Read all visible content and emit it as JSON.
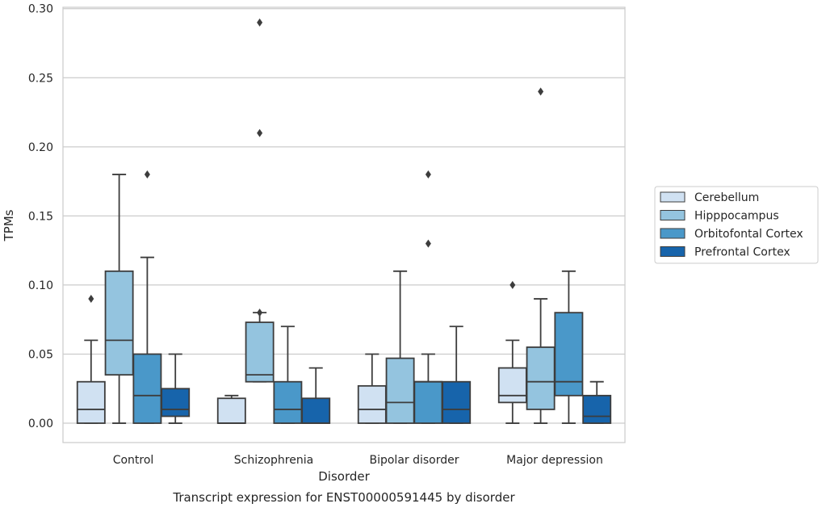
{
  "chart_data": {
    "type": "box",
    "title": "",
    "caption": "Transcript expression for ENST00000591445 by disorder",
    "xlabel": "Disorder",
    "ylabel": "TPMs",
    "ylim": [
      -0.014,
      0.301
    ],
    "yticks": [
      "0.00",
      "0.05",
      "0.10",
      "0.15",
      "0.20",
      "0.25",
      "0.30"
    ],
    "ytick_values": [
      0,
      0.05,
      0.1,
      0.15,
      0.2,
      0.25,
      0.3
    ],
    "grid": "horizontal",
    "legend_position": "right",
    "categories": [
      "Control",
      "Schizophrenia",
      "Bipolar disorder",
      "Major depression"
    ],
    "series": [
      {
        "name": "Cerebellum",
        "color": "#d0e1f2",
        "boxes": [
          {
            "whislo": 0.0,
            "q1": 0.0,
            "med": 0.01,
            "q3": 0.03,
            "whishi": 0.06,
            "fliers": [
              0.09
            ]
          },
          {
            "whislo": 0.0,
            "q1": 0.0,
            "med": 0.0,
            "q3": 0.018,
            "whishi": 0.02,
            "fliers": []
          },
          {
            "whislo": 0.0,
            "q1": 0.0,
            "med": 0.01,
            "q3": 0.027,
            "whishi": 0.05,
            "fliers": []
          },
          {
            "whislo": 0.0,
            "q1": 0.015,
            "med": 0.02,
            "q3": 0.04,
            "whishi": 0.06,
            "fliers": [
              0.1
            ]
          }
        ]
      },
      {
        "name": "Hipppocampus",
        "color": "#94c4df",
        "boxes": [
          {
            "whislo": 0.0,
            "q1": 0.035,
            "med": 0.06,
            "q3": 0.11,
            "whishi": 0.18,
            "fliers": []
          },
          {
            "whislo": 0.03,
            "q1": 0.03,
            "med": 0.035,
            "q3": 0.073,
            "whishi": 0.08,
            "fliers": [
              0.08,
              0.21,
              0.29
            ]
          },
          {
            "whislo": 0.0,
            "q1": 0.0,
            "med": 0.015,
            "q3": 0.047,
            "whishi": 0.11,
            "fliers": []
          },
          {
            "whislo": 0.0,
            "q1": 0.01,
            "med": 0.03,
            "q3": 0.055,
            "whishi": 0.09,
            "fliers": [
              0.24
            ]
          }
        ]
      },
      {
        "name": "Orbitofontal Cortex",
        "color": "#4a98c9",
        "boxes": [
          {
            "whislo": 0.0,
            "q1": 0.0,
            "med": 0.02,
            "q3": 0.05,
            "whishi": 0.12,
            "fliers": [
              0.18
            ]
          },
          {
            "whislo": 0.0,
            "q1": 0.0,
            "med": 0.01,
            "q3": 0.03,
            "whishi": 0.07,
            "fliers": []
          },
          {
            "whislo": 0.0,
            "q1": 0.0,
            "med": 0.03,
            "q3": 0.03,
            "whishi": 0.05,
            "fliers": [
              0.13,
              0.18
            ]
          },
          {
            "whislo": 0.0,
            "q1": 0.02,
            "med": 0.03,
            "q3": 0.08,
            "whishi": 0.11,
            "fliers": []
          }
        ]
      },
      {
        "name": "Prefrontal Cortex",
        "color": "#1764ab",
        "boxes": [
          {
            "whislo": 0.0,
            "q1": 0.005,
            "med": 0.01,
            "q3": 0.025,
            "whishi": 0.05,
            "fliers": []
          },
          {
            "whislo": 0.0,
            "q1": 0.0,
            "med": 0.0,
            "q3": 0.018,
            "whishi": 0.04,
            "fliers": []
          },
          {
            "whislo": 0.0,
            "q1": 0.0,
            "med": 0.01,
            "q3": 0.03,
            "whishi": 0.07,
            "fliers": []
          },
          {
            "whislo": 0.0,
            "q1": 0.0,
            "med": 0.005,
            "q3": 0.02,
            "whishi": 0.03,
            "fliers": []
          }
        ]
      }
    ]
  }
}
